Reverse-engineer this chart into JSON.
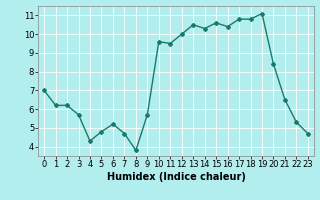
{
  "x": [
    0,
    1,
    2,
    3,
    4,
    5,
    6,
    7,
    8,
    9,
    10,
    11,
    12,
    13,
    14,
    15,
    16,
    17,
    18,
    19,
    20,
    21,
    22,
    23
  ],
  "y": [
    7.0,
    6.2,
    6.2,
    5.7,
    4.3,
    4.8,
    5.2,
    4.7,
    3.8,
    5.7,
    9.6,
    9.5,
    10.0,
    10.5,
    10.3,
    10.6,
    10.4,
    10.8,
    10.8,
    11.1,
    8.4,
    6.5,
    5.3,
    4.7
  ],
  "line_color": "#1a7a6a",
  "marker": "D",
  "marker_size": 2,
  "linewidth": 1.0,
  "bg_color": "#b2eeee",
  "grid_color": "#ffffff",
  "xlabel": "Humidex (Indice chaleur)",
  "xlabel_fontsize": 7,
  "tick_fontsize": 6,
  "xlim": [
    -0.5,
    23.5
  ],
  "ylim": [
    3.5,
    11.5
  ],
  "yticks": [
    4,
    5,
    6,
    7,
    8,
    9,
    10,
    11
  ],
  "xticks": [
    0,
    1,
    2,
    3,
    4,
    5,
    6,
    7,
    8,
    9,
    10,
    11,
    12,
    13,
    14,
    15,
    16,
    17,
    18,
    19,
    20,
    21,
    22,
    23
  ]
}
